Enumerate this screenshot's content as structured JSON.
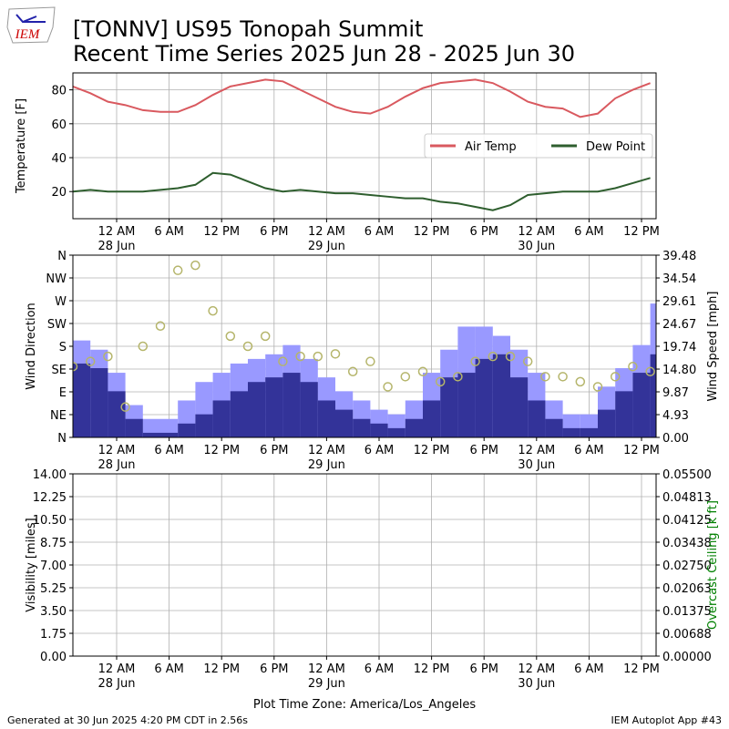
{
  "title": [
    "[TONNV] US95 Tonopah Summit",
    "Recent Time Series 2025 Jun 28 - 2025 Jun 30"
  ],
  "logo": "IEM",
  "footer": {
    "left": "Generated at 30 Jun 2025 4:20 PM CDT in 2.56s",
    "right": "IEM Autoplot App #43"
  },
  "chart_data": [
    {
      "type": "line",
      "ylabel": "Temperature [F]",
      "xlim": [
        "2025-06-27T19:00",
        "2025-06-30T13:40"
      ],
      "xticks": [
        {
          "value": "2025-06-28T00:00",
          "label": "12 AM",
          "sublabel": "28 Jun"
        },
        {
          "value": "2025-06-28T06:00",
          "label": "6 AM"
        },
        {
          "value": "2025-06-28T12:00",
          "label": "12 PM"
        },
        {
          "value": "2025-06-28T18:00",
          "label": "6 PM"
        },
        {
          "value": "2025-06-29T00:00",
          "label": "12 AM",
          "sublabel": "29 Jun"
        },
        {
          "value": "2025-06-29T06:00",
          "label": "6 AM"
        },
        {
          "value": "2025-06-29T12:00",
          "label": "12 PM"
        },
        {
          "value": "2025-06-29T18:00",
          "label": "6 PM"
        },
        {
          "value": "2025-06-30T00:00",
          "label": "12 AM",
          "sublabel": "30 Jun"
        },
        {
          "value": "2025-06-30T06:00",
          "label": "6 AM"
        },
        {
          "value": "2025-06-30T12:00",
          "label": "12 PM"
        }
      ],
      "ylim": [
        4,
        90
      ],
      "yticks": [
        20,
        40,
        60,
        80
      ],
      "grid": true,
      "legend": "center right",
      "x": [
        "2025-06-27T19:00",
        "2025-06-27T21:00",
        "2025-06-27T23:00",
        "2025-06-28T01:00",
        "2025-06-28T03:00",
        "2025-06-28T05:00",
        "2025-06-28T07:00",
        "2025-06-28T09:00",
        "2025-06-28T11:00",
        "2025-06-28T13:00",
        "2025-06-28T15:00",
        "2025-06-28T17:00",
        "2025-06-28T19:00",
        "2025-06-28T21:00",
        "2025-06-28T23:00",
        "2025-06-29T01:00",
        "2025-06-29T03:00",
        "2025-06-29T05:00",
        "2025-06-29T07:00",
        "2025-06-29T09:00",
        "2025-06-29T11:00",
        "2025-06-29T13:00",
        "2025-06-29T15:00",
        "2025-06-29T17:00",
        "2025-06-29T19:00",
        "2025-06-29T21:00",
        "2025-06-29T23:00",
        "2025-06-30T01:00",
        "2025-06-30T03:00",
        "2025-06-30T05:00",
        "2025-06-30T07:00",
        "2025-06-30T09:00",
        "2025-06-30T11:00",
        "2025-06-30T13:00"
      ],
      "series": [
        {
          "name": "Air Temp",
          "color": "#d9595f",
          "values": [
            82,
            78,
            73,
            71,
            68,
            67,
            67,
            71,
            77,
            82,
            84,
            86,
            85,
            80,
            75,
            70,
            67,
            66,
            70,
            76,
            81,
            84,
            85,
            86,
            84,
            79,
            73,
            70,
            69,
            64,
            66,
            75,
            80,
            84
          ]
        },
        {
          "name": "Dew Point",
          "color": "#2e5e2e",
          "values": [
            20,
            21,
            20,
            20,
            20,
            21,
            22,
            24,
            31,
            30,
            26,
            22,
            20,
            21,
            20,
            19,
            19,
            18,
            17,
            16,
            16,
            14,
            13,
            11,
            9,
            12,
            18,
            19,
            20,
            20,
            20,
            22,
            25,
            28
          ]
        }
      ]
    },
    {
      "type": "bar",
      "ylabel": "Wind Direction",
      "y2label": "Wind Speed [mph]",
      "xlim": [
        "2025-06-27T19:00",
        "2025-06-30T13:40"
      ],
      "xticks": [
        {
          "value": "2025-06-28T00:00",
          "label": "12 AM",
          "sublabel": "28 Jun"
        },
        {
          "value": "2025-06-28T06:00",
          "label": "6 AM"
        },
        {
          "value": "2025-06-28T12:00",
          "label": "12 PM"
        },
        {
          "value": "2025-06-28T18:00",
          "label": "6 PM"
        },
        {
          "value": "2025-06-29T00:00",
          "label": "12 AM",
          "sublabel": "29 Jun"
        },
        {
          "value": "2025-06-29T06:00",
          "label": "6 AM"
        },
        {
          "value": "2025-06-29T12:00",
          "label": "12 PM"
        },
        {
          "value": "2025-06-29T18:00",
          "label": "6 PM"
        },
        {
          "value": "2025-06-30T00:00",
          "label": "12 AM",
          "sublabel": "30 Jun"
        },
        {
          "value": "2025-06-30T06:00",
          "label": "6 AM"
        },
        {
          "value": "2025-06-30T12:00",
          "label": "12 PM"
        }
      ],
      "ylim": [
        0,
        360
      ],
      "yticks": [
        {
          "value": 0,
          "label": "N"
        },
        {
          "value": 45,
          "label": "NE"
        },
        {
          "value": 90,
          "label": "E"
        },
        {
          "value": 135,
          "label": "SE"
        },
        {
          "value": 180,
          "label": "S"
        },
        {
          "value": 225,
          "label": "SW"
        },
        {
          "value": 270,
          "label": "W"
        },
        {
          "value": 315,
          "label": "NW"
        },
        {
          "value": 360,
          "label": "N"
        }
      ],
      "y2lim": [
        0,
        39.48
      ],
      "y2ticks": [
        {
          "value": 0,
          "label": "0.00"
        },
        4.93,
        9.87,
        {
          "value": 14.8,
          "label": "14.80"
        },
        19.74,
        24.67,
        29.61,
        34.54,
        39.48
      ],
      "grid": true,
      "x": [
        "2025-06-27T19:00",
        "2025-06-27T21:00",
        "2025-06-27T23:00",
        "2025-06-28T01:00",
        "2025-06-28T03:00",
        "2025-06-28T05:00",
        "2025-06-28T07:00",
        "2025-06-28T09:00",
        "2025-06-28T11:00",
        "2025-06-28T13:00",
        "2025-06-28T15:00",
        "2025-06-28T17:00",
        "2025-06-28T19:00",
        "2025-06-28T21:00",
        "2025-06-28T23:00",
        "2025-06-29T01:00",
        "2025-06-29T03:00",
        "2025-06-29T05:00",
        "2025-06-29T07:00",
        "2025-06-29T09:00",
        "2025-06-29T11:00",
        "2025-06-29T13:00",
        "2025-06-29T15:00",
        "2025-06-29T17:00",
        "2025-06-29T19:00",
        "2025-06-29T21:00",
        "2025-06-29T23:00",
        "2025-06-30T01:00",
        "2025-06-30T03:00",
        "2025-06-30T05:00",
        "2025-06-30T07:00",
        "2025-06-30T09:00",
        "2025-06-30T11:00",
        "2025-06-30T13:00"
      ],
      "series": [
        {
          "type": "bar",
          "axis": "y2",
          "color": "#9999ff",
          "values": [
            21,
            19,
            14,
            7,
            4,
            4,
            8,
            12,
            14,
            16,
            17,
            18,
            20,
            17,
            13,
            10,
            8,
            6,
            5,
            8,
            14,
            19,
            24,
            24,
            22,
            19,
            14,
            8,
            5,
            5,
            11,
            15,
            20,
            29
          ]
        },
        {
          "type": "bar",
          "axis": "y2",
          "color": "#333399",
          "values": [
            16,
            15,
            10,
            4,
            1,
            1,
            3,
            5,
            8,
            10,
            12,
            13,
            14,
            12,
            8,
            6,
            4,
            3,
            2,
            4,
            8,
            13,
            14,
            17,
            18,
            13,
            8,
            4,
            2,
            2,
            6,
            10,
            14,
            18
          ]
        },
        {
          "type": "scatter",
          "color": "#b5b56b",
          "values": [
            140,
            150,
            160,
            60,
            180,
            220,
            330,
            340,
            250,
            200,
            180,
            200,
            150,
            160,
            160,
            165,
            130,
            150,
            100,
            120,
            130,
            110,
            120,
            150,
            160,
            160,
            150,
            120,
            120,
            110,
            100,
            120,
            140,
            130
          ]
        }
      ]
    },
    {
      "type": "line",
      "ylabel": "Visibility [miles]",
      "y2label": "Overcast Ceiling [k ft]",
      "y2label_color": "#008000",
      "xlabel": "Plot Time Zone: America/Los_Angeles",
      "xlim": [
        "2025-06-27T19:00",
        "2025-06-30T13:40"
      ],
      "xticks": [
        {
          "value": "2025-06-28T00:00",
          "label": "12 AM",
          "sublabel": "28 Jun"
        },
        {
          "value": "2025-06-28T06:00",
          "label": "6 AM"
        },
        {
          "value": "2025-06-28T12:00",
          "label": "12 PM"
        },
        {
          "value": "2025-06-28T18:00",
          "label": "6 PM"
        },
        {
          "value": "2025-06-29T00:00",
          "label": "12 AM",
          "sublabel": "29 Jun"
        },
        {
          "value": "2025-06-29T06:00",
          "label": "6 AM"
        },
        {
          "value": "2025-06-29T12:00",
          "label": "12 PM"
        },
        {
          "value": "2025-06-29T18:00",
          "label": "6 PM"
        },
        {
          "value": "2025-06-30T00:00",
          "label": "12 AM",
          "sublabel": "30 Jun"
        },
        {
          "value": "2025-06-30T06:00",
          "label": "6 AM"
        },
        {
          "value": "2025-06-30T12:00",
          "label": "12 PM"
        }
      ],
      "ylim": [
        0,
        14
      ],
      "yticks": [
        {
          "value": 0,
          "label": "0.00"
        },
        1.75,
        {
          "value": 3.5,
          "label": "3.50"
        },
        5.25,
        {
          "value": 7,
          "label": "7.00"
        },
        8.75,
        {
          "value": 10.5,
          "label": "10.50"
        },
        12.25,
        {
          "value": 14,
          "label": "14.00"
        }
      ],
      "y2lim": [
        0,
        0.055
      ],
      "y2ticks": [
        {
          "value": 0,
          "label": "0.00000"
        },
        {
          "value": 0.006875,
          "label": "0.00688"
        },
        {
          "value": 0.01375,
          "label": "0.01375"
        },
        {
          "value": 0.020625,
          "label": "0.02063"
        },
        {
          "value": 0.0275,
          "label": "0.02750"
        },
        {
          "value": 0.034375,
          "label": "0.03438"
        },
        {
          "value": 0.04125,
          "label": "0.04125"
        },
        {
          "value": 0.048125,
          "label": "0.04813"
        },
        {
          "value": 0.055,
          "label": "0.05500"
        }
      ],
      "grid": true,
      "series": []
    }
  ]
}
